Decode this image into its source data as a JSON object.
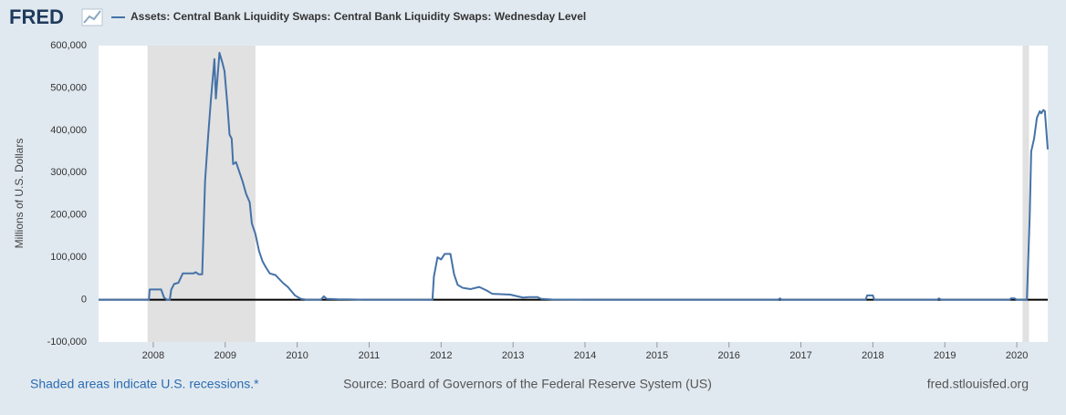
{
  "logo": "FRED",
  "chart_data": {
    "type": "line",
    "y_label": "Millions of U.S. Dollars",
    "footer_left": "Shaded areas indicate U.S. recessions.*",
    "source": "Source: Board of Governors of the Federal Reserve System (US)",
    "site": "fred.stlouisfed.org",
    "xlim": [
      2007.24,
      2020.43
    ],
    "xticks": [
      2008,
      2009,
      2010,
      2011,
      2012,
      2013,
      2014,
      2015,
      2016,
      2017,
      2018,
      2019,
      2020
    ],
    "ylim": [
      -100000,
      600000
    ],
    "yticks": [
      {
        "value": -100000,
        "label": "-100,000"
      },
      0,
      {
        "value": 100000,
        "label": "100,000"
      },
      {
        "value": 200000,
        "label": "200,000"
      },
      {
        "value": 300000,
        "label": "300,000"
      },
      {
        "value": 400000,
        "label": "400,000"
      },
      {
        "value": 500000,
        "label": "500,000"
      },
      {
        "value": 600000,
        "label": "600,000"
      }
    ],
    "grid": false,
    "recessions": [
      [
        2007.92,
        2009.42
      ],
      [
        2020.08,
        2020.17
      ]
    ],
    "x": [
      2007.24,
      2007.94,
      2007.95,
      2008.11,
      2008.15,
      2008.19,
      2008.23,
      2008.25,
      2008.29,
      2008.35,
      2008.41,
      2008.56,
      2008.59,
      2008.63,
      2008.68,
      2008.72,
      2008.76,
      2008.8,
      2008.85,
      2008.87,
      2008.9,
      2008.92,
      2008.96,
      2008.99,
      2009.03,
      2009.06,
      2009.09,
      2009.11,
      2009.15,
      2009.19,
      2009.24,
      2009.29,
      2009.34,
      2009.37,
      2009.42,
      2009.47,
      2009.52,
      2009.57,
      2009.62,
      2009.7,
      2009.8,
      2009.87,
      2009.92,
      2009.97,
      2010.05,
      2010.13,
      2010.33,
      2010.37,
      2010.41,
      2010.56,
      2010.94,
      2011.88,
      2011.9,
      2011.95,
      2012.0,
      2012.05,
      2012.13,
      2012.18,
      2012.23,
      2012.3,
      2012.41,
      2012.53,
      2012.63,
      2012.71,
      2012.96,
      2013.06,
      2013.14,
      2013.22,
      2013.34,
      2013.39,
      2013.54,
      2013.97,
      2016.68,
      2016.71,
      2016.73,
      2017.9,
      2017.92,
      2018.0,
      2018.02,
      2018.89,
      2018.92,
      2018.95,
      2019.9,
      2019.92,
      2019.97,
      2020.0,
      2020.14,
      2020.18,
      2020.2,
      2020.24,
      2020.28,
      2020.32,
      2020.34,
      2020.37,
      2020.39,
      2020.43
    ],
    "series": [
      {
        "name": "Assets: Central Bank Liquidity Swaps: Central Bank Liquidity Swaps: Wednesday Level",
        "color": "#4572a7",
        "values": [
          0,
          0,
          24000,
          24000,
          5000,
          0,
          0,
          24000,
          37000,
          40000,
          62000,
          62000,
          65000,
          60000,
          60000,
          280000,
          380000,
          470000,
          568000,
          475000,
          540000,
          583000,
          560000,
          540000,
          460000,
          390000,
          380000,
          320000,
          325000,
          305000,
          280000,
          250000,
          230000,
          180000,
          155000,
          115000,
          90000,
          75000,
          62000,
          58000,
          40000,
          30000,
          20000,
          10000,
          2000,
          0,
          0,
          8000,
          2000,
          1000,
          0,
          0,
          55000,
          100000,
          95000,
          108000,
          108000,
          60000,
          35000,
          28000,
          25000,
          30000,
          22000,
          14000,
          12000,
          8000,
          5000,
          6000,
          6000,
          2000,
          500,
          0,
          0,
          3000,
          0,
          0,
          10000,
          10000,
          0,
          0,
          3000,
          0,
          0,
          3000,
          3000,
          0,
          0,
          200000,
          350000,
          380000,
          430000,
          445000,
          440000,
          448000,
          445000,
          355000
        ]
      }
    ]
  }
}
